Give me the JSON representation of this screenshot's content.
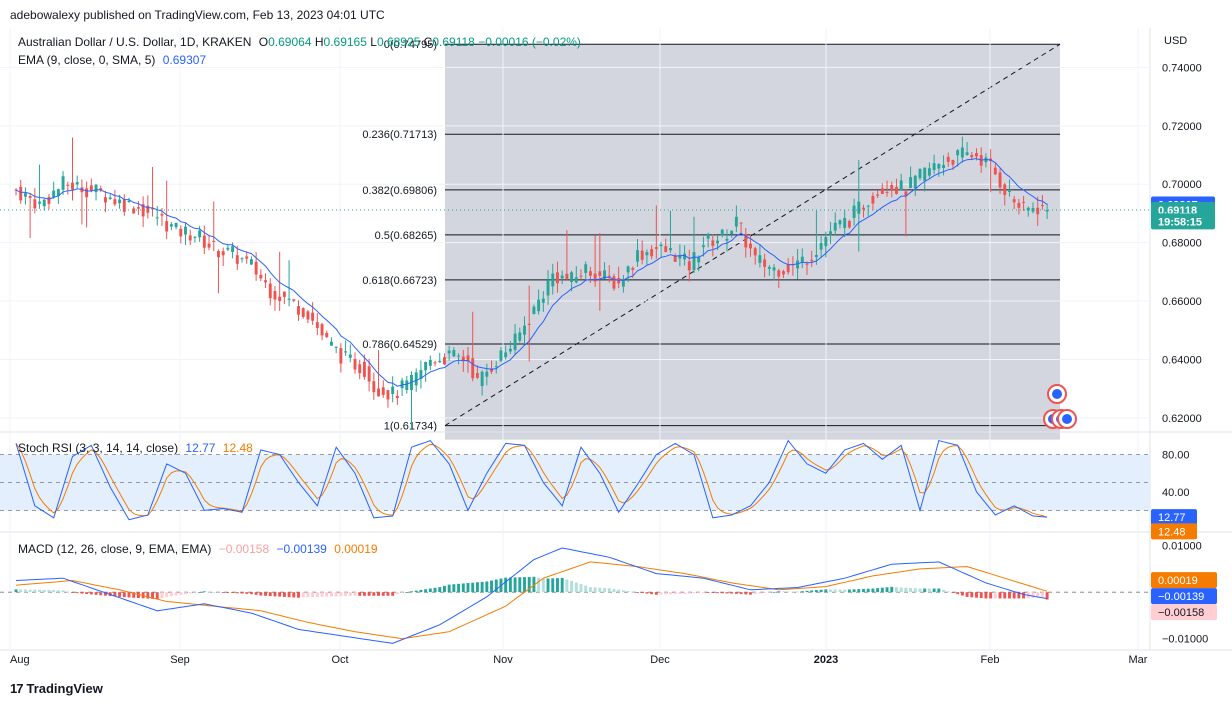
{
  "header": {
    "published": "adebowalexy published on TradingView.com, Feb 13, 2023 04:01 UTC"
  },
  "main_legend": {
    "symbol": "Australian Dollar / U.S. Dollar, 1D, KRAKEN",
    "o_label": "O",
    "o_value": "0.69064",
    "h_label": "H",
    "h_value": "0.69165",
    "l_label": "L",
    "l_value": "0.68925",
    "c_label": "C",
    "c_value": "0.69118",
    "change": "−0.00016 (−0.02%)",
    "ema_label": "EMA (9, close, 0, SMA, 5)",
    "ema_value": "0.69307"
  },
  "stoch_legend": {
    "label": "Stoch RSI (3, 3, 14, 14, close)",
    "k": "12.77",
    "d": "12.48"
  },
  "macd_legend": {
    "label": "MACD (12, 26, close, 9, EMA, EMA)",
    "hist": "−0.00158",
    "macd": "−0.00139",
    "signal": "0.00019"
  },
  "footer": {
    "brand": "TradingView"
  },
  "colors": {
    "up": "#26a69a",
    "down": "#ef5350",
    "ema": "#2962ff",
    "orange": "#f57c00",
    "fib_zone": "#d1d4dc",
    "stoch_band": "#e3effc"
  },
  "chart_data": [
    {
      "type": "candlestick",
      "title": "Australian Dollar / U.S. Dollar, 1D, KRAKEN",
      "ylabel": "USD",
      "ylim": [
        0.6155,
        0.7535
      ],
      "y_ticks": [
        "0.74000",
        "0.72000",
        "0.70000",
        "0.68000",
        "0.66000",
        "0.64000",
        "0.62000"
      ],
      "x_ticks": [
        "Aug",
        "Sep",
        "Oct",
        "Nov",
        "Dec",
        "2023",
        "Feb",
        "Mar"
      ],
      "price_badges": [
        {
          "text": "0.69307",
          "value": 0.69307,
          "color": "#2962ff"
        },
        {
          "text": "0.69118",
          "value": 0.69118,
          "color": "#26a69a"
        },
        {
          "text": "19:58:15",
          "value": 0.6873,
          "color": "#26a69a"
        }
      ],
      "fibonacci": [
        {
          "label": "0(0.74795)",
          "value": 0.74795
        },
        {
          "label": "0.236(0.71713)",
          "value": 0.71713
        },
        {
          "label": "0.382(0.69806)",
          "value": 0.69806
        },
        {
          "label": "0.5(0.68265)",
          "value": 0.68265
        },
        {
          "label": "0.618(0.66723)",
          "value": 0.66723
        },
        {
          "label": "0.786(0.64529)",
          "value": 0.64529
        },
        {
          "label": "1(0.61734)",
          "value": 0.61734
        }
      ],
      "close_path": [
        [
          0,
          0.698
        ],
        [
          5,
          0.693
        ],
        [
          10,
          0.7
        ],
        [
          14,
          0.699
        ],
        [
          18,
          0.697
        ],
        [
          22,
          0.694
        ],
        [
          26,
          0.692
        ],
        [
          30,
          0.689
        ],
        [
          34,
          0.684
        ],
        [
          38,
          0.683
        ],
        [
          42,
          0.678
        ],
        [
          46,
          0.676
        ],
        [
          50,
          0.672
        ],
        [
          54,
          0.664
        ],
        [
          58,
          0.66
        ],
        [
          62,
          0.656
        ],
        [
          66,
          0.646
        ],
        [
          70,
          0.64
        ],
        [
          74,
          0.637
        ],
        [
          76,
          0.631
        ],
        [
          80,
          0.628
        ],
        [
          84,
          0.632
        ],
        [
          88,
          0.64
        ],
        [
          92,
          0.641
        ],
        [
          96,
          0.64
        ],
        [
          98,
          0.632
        ],
        [
          102,
          0.64
        ],
        [
          106,
          0.646
        ],
        [
          110,
          0.657
        ],
        [
          114,
          0.669
        ],
        [
          118,
          0.667
        ],
        [
          121,
          0.671
        ],
        [
          125,
          0.668
        ],
        [
          128,
          0.666
        ],
        [
          132,
          0.676
        ],
        [
          136,
          0.678
        ],
        [
          140,
          0.676
        ],
        [
          143,
          0.672
        ],
        [
          146,
          0.68
        ],
        [
          150,
          0.682
        ],
        [
          153,
          0.687
        ],
        [
          157,
          0.674
        ],
        [
          161,
          0.671
        ],
        [
          165,
          0.672
        ],
        [
          169,
          0.676
        ],
        [
          173,
          0.684
        ],
        [
          177,
          0.688
        ],
        [
          181,
          0.695
        ],
        [
          185,
          0.7
        ],
        [
          189,
          0.698
        ],
        [
          193,
          0.704
        ],
        [
          197,
          0.708
        ],
        [
          201,
          0.71
        ],
        [
          204,
          0.71
        ],
        [
          207,
          0.706
        ],
        [
          211,
          0.696
        ],
        [
          214,
          0.691
        ],
        [
          217,
          0.692
        ],
        [
          219,
          0.6912
        ]
      ],
      "ema_value": 0.69307,
      "last_close": 0.69118
    },
    {
      "type": "line",
      "title": "Stoch RSI (3, 3, 14, 14, close)",
      "ylim": [
        0,
        100
      ],
      "y_ticks": [
        "80.00",
        "40.00"
      ],
      "band": [
        20,
        80
      ],
      "series": [
        {
          "name": "K",
          "last": 12.77
        },
        {
          "name": "D",
          "last": 12.48
        }
      ],
      "k_path": [
        [
          0,
          92
        ],
        [
          4,
          25
        ],
        [
          8,
          12
        ],
        [
          12,
          78
        ],
        [
          16,
          90
        ],
        [
          20,
          45
        ],
        [
          24,
          10
        ],
        [
          28,
          15
        ],
        [
          32,
          70
        ],
        [
          36,
          60
        ],
        [
          40,
          20
        ],
        [
          44,
          22
        ],
        [
          48,
          18
        ],
        [
          52,
          85
        ],
        [
          56,
          80
        ],
        [
          60,
          50
        ],
        [
          64,
          25
        ],
        [
          68,
          88
        ],
        [
          72,
          60
        ],
        [
          76,
          12
        ],
        [
          80,
          14
        ],
        [
          84,
          88
        ],
        [
          88,
          95
        ],
        [
          92,
          70
        ],
        [
          96,
          20
        ],
        [
          100,
          60
        ],
        [
          104,
          92
        ],
        [
          108,
          90
        ],
        [
          112,
          50
        ],
        [
          116,
          25
        ],
        [
          120,
          88
        ],
        [
          124,
          60
        ],
        [
          128,
          18
        ],
        [
          132,
          48
        ],
        [
          136,
          80
        ],
        [
          140,
          92
        ],
        [
          144,
          80
        ],
        [
          148,
          12
        ],
        [
          152,
          15
        ],
        [
          156,
          25
        ],
        [
          160,
          50
        ],
        [
          164,
          95
        ],
        [
          168,
          70
        ],
        [
          172,
          60
        ],
        [
          176,
          85
        ],
        [
          180,
          92
        ],
        [
          184,
          75
        ],
        [
          188,
          90
        ],
        [
          192,
          20
        ],
        [
          196,
          95
        ],
        [
          200,
          90
        ],
        [
          204,
          40
        ],
        [
          208,
          15
        ],
        [
          212,
          25
        ],
        [
          216,
          14
        ],
        [
          219,
          12.77
        ]
      ]
    },
    {
      "type": "bar+line",
      "title": "MACD (12, 26, close, 9, EMA, EMA)",
      "ylim": [
        -0.012,
        0.0125
      ],
      "y_ticks": [
        "0.01000",
        "−0.01000"
      ],
      "series": [
        {
          "name": "Histogram",
          "last": -0.00158
        },
        {
          "name": "MACD",
          "last": -0.00139
        },
        {
          "name": "Signal",
          "last": 0.00019
        }
      ],
      "macd_path": [
        [
          0,
          0.0025
        ],
        [
          10,
          0.003
        ],
        [
          20,
          -0.0005
        ],
        [
          30,
          -0.004
        ],
        [
          40,
          -0.0025
        ],
        [
          50,
          -0.0045
        ],
        [
          60,
          -0.008
        ],
        [
          70,
          -0.0095
        ],
        [
          80,
          -0.011
        ],
        [
          90,
          -0.007
        ],
        [
          100,
          -0.001
        ],
        [
          110,
          0.007
        ],
        [
          116,
          0.0095
        ],
        [
          126,
          0.0075
        ],
        [
          136,
          0.004
        ],
        [
          146,
          0.003
        ],
        [
          156,
          0.0005
        ],
        [
          166,
          0.001
        ],
        [
          176,
          0.003
        ],
        [
          186,
          0.006
        ],
        [
          196,
          0.0065
        ],
        [
          206,
          0.002
        ],
        [
          214,
          -0.0005
        ],
        [
          219,
          -0.00139
        ]
      ],
      "signal_path": [
        [
          0,
          0.0015
        ],
        [
          12,
          0.0025
        ],
        [
          22,
          0.0005
        ],
        [
          32,
          -0.002
        ],
        [
          42,
          -0.003
        ],
        [
          52,
          -0.004
        ],
        [
          62,
          -0.0065
        ],
        [
          72,
          -0.0085
        ],
        [
          82,
          -0.01
        ],
        [
          92,
          -0.0085
        ],
        [
          104,
          -0.003
        ],
        [
          112,
          0.003
        ],
        [
          122,
          0.0065
        ],
        [
          132,
          0.0055
        ],
        [
          142,
          0.004
        ],
        [
          152,
          0.002
        ],
        [
          162,
          0.0005
        ],
        [
          172,
          0.0012
        ],
        [
          182,
          0.0035
        ],
        [
          192,
          0.005
        ],
        [
          202,
          0.0055
        ],
        [
          210,
          0.003
        ],
        [
          219,
          0.00019
        ]
      ]
    }
  ]
}
